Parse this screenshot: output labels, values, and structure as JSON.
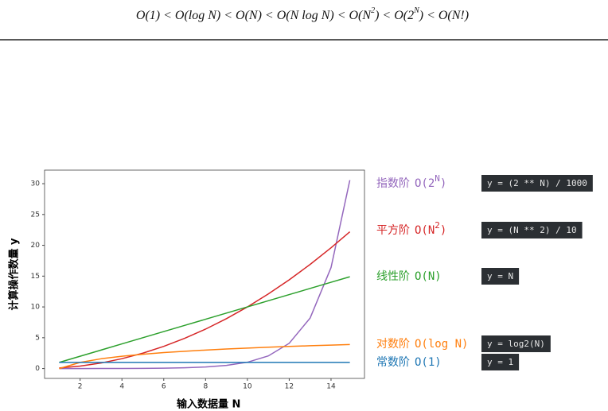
{
  "formula": [
    "O(1) < O(log N) < O(N) < O(N log N) < O(N",
    "2",
    ") < O(2",
    "N",
    ") < O(N!)"
  ],
  "chart_data": {
    "type": "line",
    "xlabel": "输入数据量 N",
    "ylabel": "计算操作数量 y",
    "x": [
      1,
      2,
      3,
      4,
      5,
      6,
      7,
      8,
      9,
      10,
      11,
      12,
      13,
      14,
      14.9
    ],
    "xlim": [
      0.3,
      15.6
    ],
    "xticks": [
      2,
      4,
      6,
      8,
      10,
      12,
      14
    ],
    "ylim": [
      -1.6,
      32.2
    ],
    "yticks": [
      0,
      5,
      10,
      15,
      20,
      25,
      30
    ],
    "series": [
      {
        "name": "指数阶",
        "notation": "O(2",
        "notation_sup": "N",
        "notation_end": ")",
        "code": "y = (2 ** N) / 1000",
        "color": "#9467bd",
        "values": [
          0.002,
          0.004,
          0.008,
          0.016,
          0.032,
          0.064,
          0.128,
          0.256,
          0.512,
          1.024,
          2.048,
          4.096,
          8.192,
          16.384,
          30.57
        ]
      },
      {
        "name": "平方阶",
        "notation": "O(N",
        "notation_sup": "2",
        "notation_end": ")",
        "code": "y = (N ** 2) / 10",
        "color": "#d62728",
        "values": [
          0.1,
          0.4,
          0.9,
          1.6,
          2.5,
          3.6,
          4.9,
          6.4,
          8.1,
          10,
          12.1,
          14.4,
          16.9,
          19.6,
          22.2
        ]
      },
      {
        "name": "线性阶",
        "notation": "O(N)",
        "code": "y = N",
        "color": "#2ca02c",
        "values": [
          1,
          2,
          3,
          4,
          5,
          6,
          7,
          8,
          9,
          10,
          11,
          12,
          13,
          14,
          14.9
        ]
      },
      {
        "name": "对数阶",
        "notation": "O(log N)",
        "code": "y = log2(N)",
        "color": "#ff7f0e",
        "values": [
          0,
          1,
          1.585,
          2,
          2.322,
          2.585,
          2.807,
          3,
          3.17,
          3.322,
          3.459,
          3.585,
          3.7,
          3.807,
          3.897
        ]
      },
      {
        "name": "常数阶",
        "notation": "O(1)",
        "code": "y = 1",
        "color": "#1f77b4",
        "values": [
          1,
          1,
          1,
          1,
          1,
          1,
          1,
          1,
          1,
          1,
          1,
          1,
          1,
          1,
          1
        ]
      }
    ]
  }
}
